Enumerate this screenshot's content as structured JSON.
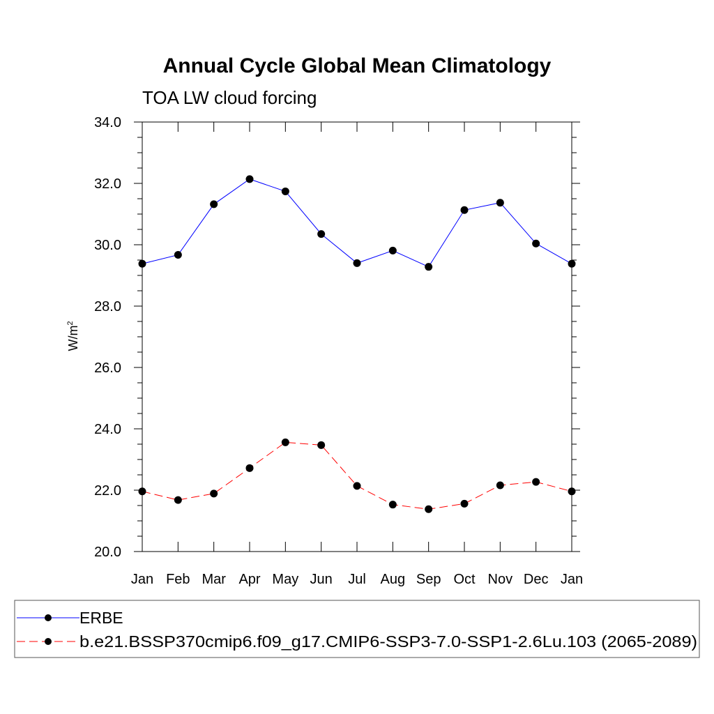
{
  "chart_data": {
    "type": "line",
    "title": "Annual Cycle Global Mean Climatology",
    "subtitle": "TOA LW cloud forcing",
    "xlabel": "",
    "ylabel": "W/m",
    "ylabel_superscript": "2",
    "categories": [
      "Jan",
      "Feb",
      "Mar",
      "Apr",
      "May",
      "Jun",
      "Jul",
      "Aug",
      "Sep",
      "Oct",
      "Nov",
      "Dec",
      "Jan"
    ],
    "ylim": [
      20.0,
      34.0
    ],
    "yticks": [
      "20.0",
      "22.0",
      "24.0",
      "26.0",
      "28.0",
      "30.0",
      "32.0",
      "34.0"
    ],
    "grid": false,
    "legend_position": "bottom",
    "series": [
      {
        "name": "ERBE",
        "color": "#0000ff",
        "dash": "solid",
        "values": [
          29.38,
          29.67,
          31.32,
          32.14,
          31.74,
          30.35,
          29.4,
          29.81,
          29.28,
          31.13,
          31.37,
          30.04,
          29.38
        ]
      },
      {
        "name": "b.e21.BSSP370cmip6.f09_g17.CMIP6-SSP3-7.0-SSP1-2.6Lu.103 (2065-2089)",
        "color": "#ff0000",
        "dash": "dashed",
        "values": [
          21.96,
          21.68,
          21.89,
          22.72,
          23.56,
          23.47,
          22.14,
          21.53,
          21.38,
          21.56,
          22.16,
          22.27,
          21.96
        ]
      }
    ]
  }
}
